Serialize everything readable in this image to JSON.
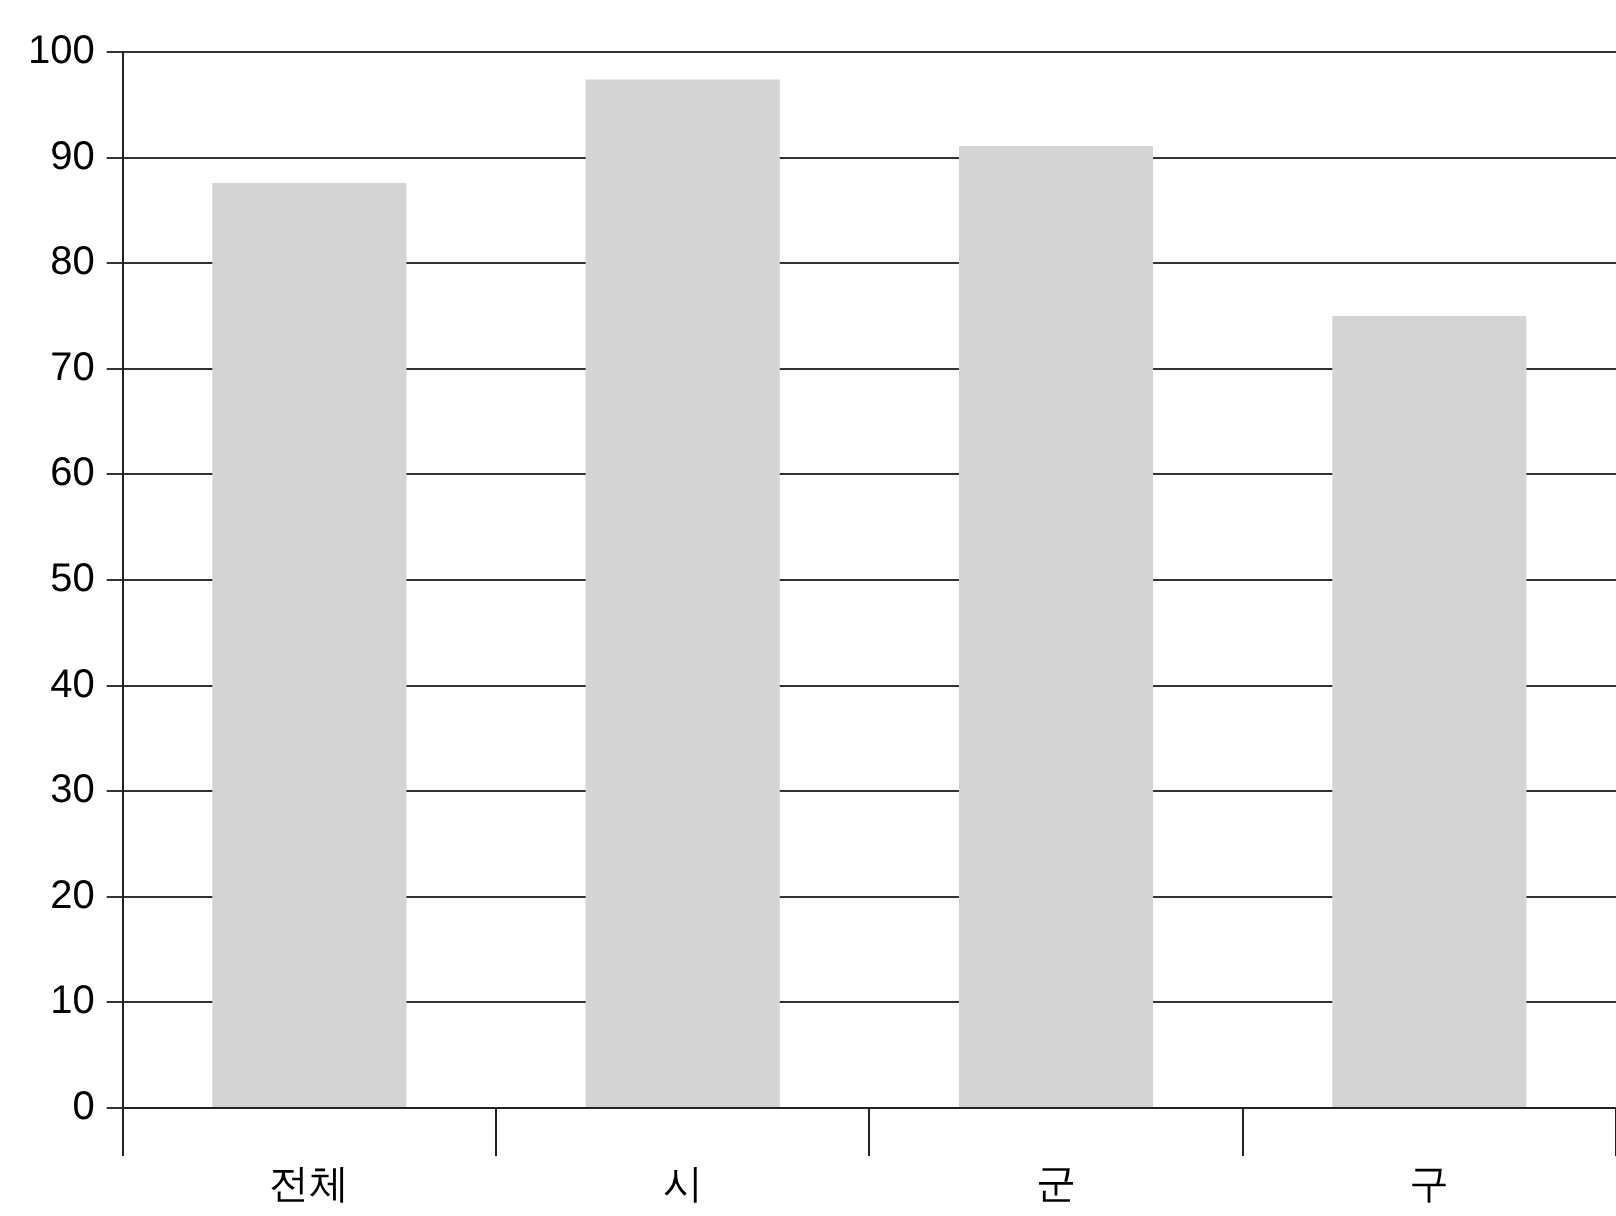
{
  "chart_data": {
    "type": "bar",
    "categories": [
      "전체",
      "시",
      "군",
      "구"
    ],
    "values": [
      87.6,
      97.4,
      91.1,
      75.0
    ],
    "color": "#d4d4d4",
    "ylim": [
      0,
      100
    ],
    "yticks": [
      0,
      10,
      20,
      30,
      40,
      50,
      60,
      70,
      80,
      90,
      100
    ],
    "grid": "y"
  }
}
